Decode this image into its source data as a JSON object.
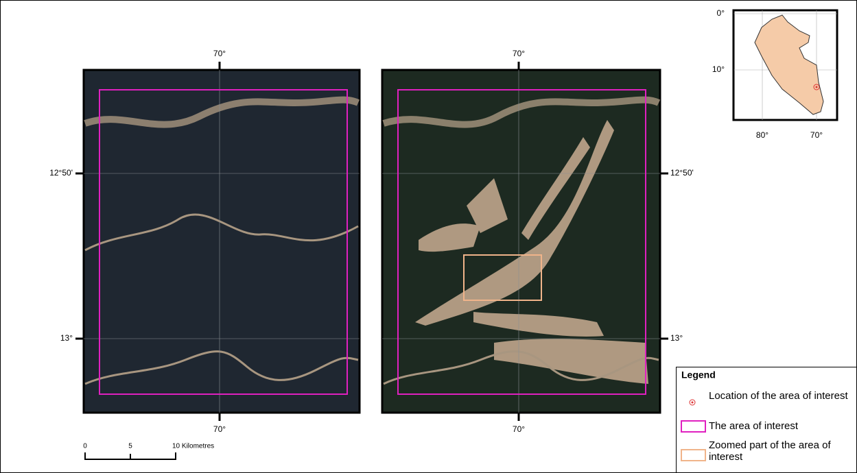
{
  "map_left": {
    "top_label": "70°",
    "bottom_label": "70°",
    "upper_lat": "12°50'",
    "lower_lat": "13°"
  },
  "map_right": {
    "top_label": "70°",
    "bottom_label": "70°",
    "upper_lat": "12°50'",
    "lower_lat": "13°"
  },
  "inset": {
    "lat_top": "0°",
    "lat_mid": "10°",
    "lon_left": "80°",
    "lon_right": "70°"
  },
  "scale_bar": {
    "labels": [
      "0",
      "5",
      "10 Kilometres"
    ]
  },
  "legend": {
    "title": "Legend",
    "items": [
      "Location of the area of interest",
      "The area of interest",
      "Zoomed part of the area of interest"
    ]
  }
}
